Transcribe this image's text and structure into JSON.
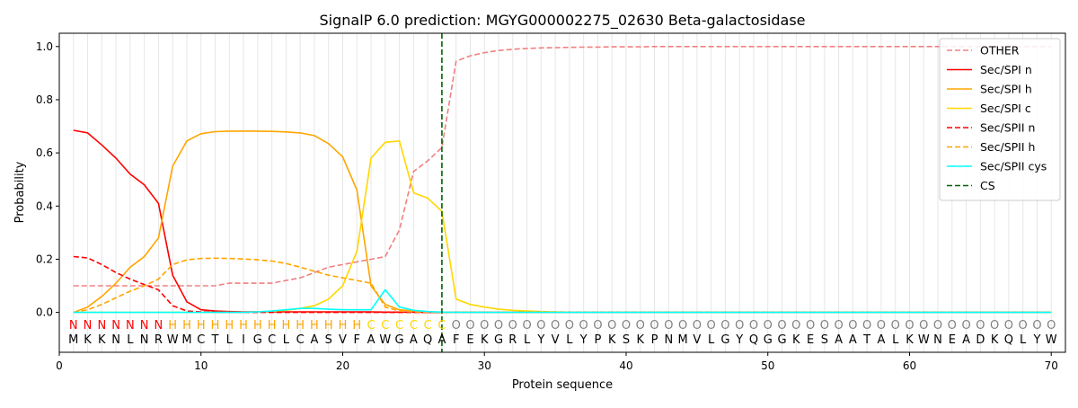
{
  "chart_data": {
    "type": "line",
    "title": "SignalP 6.0 prediction: MGYG000002275_02630 Beta-galactosidase",
    "xlabel": "Protein sequence",
    "ylabel": "Probability",
    "xlim": [
      0,
      71
    ],
    "ylim": [
      -0.15,
      1.05
    ],
    "x_ticks": [
      0,
      10,
      20,
      30,
      40,
      50,
      60,
      70
    ],
    "y_ticks": [
      0.0,
      0.2,
      0.4,
      0.6,
      0.8,
      1.0
    ],
    "grid": "vertical lines at each residue position",
    "legend_position": "top-right",
    "x": [
      1,
      2,
      3,
      4,
      5,
      6,
      7,
      8,
      9,
      10,
      11,
      12,
      13,
      14,
      15,
      16,
      17,
      18,
      19,
      20,
      21,
      22,
      23,
      24,
      25,
      26,
      27,
      28,
      29,
      30,
      31,
      32,
      33,
      34,
      35,
      36,
      37,
      38,
      39,
      40,
      41,
      42,
      43,
      44,
      45,
      46,
      47,
      48,
      49,
      50,
      51,
      52,
      53,
      54,
      55,
      56,
      57,
      58,
      59,
      60,
      61,
      62,
      63,
      64,
      65,
      66,
      67,
      68,
      69,
      70
    ],
    "sequence": [
      "M",
      "K",
      "K",
      "N",
      "L",
      "N",
      "R",
      "W",
      "M",
      "C",
      "T",
      "L",
      "I",
      "G",
      "C",
      "L",
      "C",
      "A",
      "S",
      "V",
      "F",
      "A",
      "W",
      "G",
      "A",
      "Q",
      "A",
      "F",
      "E",
      "K",
      "G",
      "R",
      "L",
      "Y",
      "V",
      "L",
      "Y",
      "P",
      "K",
      "S",
      "K",
      "P",
      "N",
      "M",
      "V",
      "L",
      "G",
      "Y",
      "Q",
      "G",
      "G",
      "K",
      "E",
      "S",
      "A",
      "A",
      "T",
      "A",
      "L",
      "K",
      "W",
      "N",
      "E",
      "A",
      "D",
      "K",
      "Q",
      "L",
      "Y",
      "W"
    ],
    "region_labels": [
      "N",
      "N",
      "N",
      "N",
      "N",
      "N",
      "N",
      "H",
      "H",
      "H",
      "H",
      "H",
      "H",
      "H",
      "H",
      "H",
      "H",
      "H",
      "H",
      "H",
      "H",
      "C",
      "C",
      "C",
      "C",
      "C",
      "C",
      "O",
      "O",
      "O",
      "O",
      "O",
      "O",
      "O",
      "O",
      "O",
      "O",
      "O",
      "O",
      "O",
      "O",
      "O",
      "O",
      "O",
      "O",
      "O",
      "O",
      "O",
      "O",
      "O",
      "O",
      "O",
      "O",
      "O",
      "O",
      "O",
      "O",
      "O",
      "O",
      "O",
      "O",
      "O",
      "O",
      "O",
      "O",
      "O",
      "O",
      "O",
      "O",
      "O"
    ],
    "region_colors": {
      "N": "#ff0000",
      "H": "#ffa500",
      "C": "#ffd700",
      "O": "#808080"
    },
    "cleavage_site": 27,
    "series": [
      {
        "name": "OTHER",
        "color": "#f08080",
        "dash": "dashed",
        "values": [
          0.1,
          0.1,
          0.1,
          0.1,
          0.1,
          0.1,
          0.1,
          0.1,
          0.1,
          0.1,
          0.1,
          0.11,
          0.11,
          0.11,
          0.11,
          0.12,
          0.13,
          0.15,
          0.17,
          0.18,
          0.19,
          0.2,
          0.21,
          0.31,
          0.53,
          0.57,
          0.62,
          0.945,
          0.965,
          0.977,
          0.985,
          0.99,
          0.993,
          0.995,
          0.996,
          0.997,
          0.998,
          0.998,
          0.999,
          0.999,
          0.999,
          1.0,
          1.0,
          1.0,
          1.0,
          1.0,
          1.0,
          1.0,
          1.0,
          1.0,
          1.0,
          1.0,
          1.0,
          1.0,
          1.0,
          1.0,
          1.0,
          1.0,
          1.0,
          1.0,
          1.0,
          1.0,
          1.0,
          1.0,
          1.0,
          1.0,
          1.0,
          1.0,
          1.0,
          1.0
        ]
      },
      {
        "name": "Sec/SPI n",
        "color": "#ff0000",
        "dash": "solid",
        "values": [
          0.685,
          0.675,
          0.63,
          0.58,
          0.52,
          0.48,
          0.41,
          0.14,
          0.04,
          0.01,
          0.005,
          0.003,
          0.002,
          0.002,
          0.002,
          0.002,
          0.002,
          0.002,
          0.002,
          0.002,
          0.002,
          0.002,
          0.001,
          0.001,
          0.001,
          0.0,
          0.0,
          0.0,
          0.0,
          0.0,
          0.0,
          0.0,
          0.0,
          0.0,
          0.0,
          0.0,
          0.0,
          0.0,
          0.0,
          0.0,
          0.0,
          0.0,
          0.0,
          0.0,
          0.0,
          0.0,
          0.0,
          0.0,
          0.0,
          0.0,
          0.0,
          0.0,
          0.0,
          0.0,
          0.0,
          0.0,
          0.0,
          0.0,
          0.0,
          0.0,
          0.0,
          0.0,
          0.0,
          0.0,
          0.0,
          0.0,
          0.0,
          0.0,
          0.0,
          0.0
        ]
      },
      {
        "name": "Sec/SPI h",
        "color": "#ffa500",
        "dash": "solid",
        "values": [
          0.0,
          0.02,
          0.06,
          0.11,
          0.17,
          0.21,
          0.28,
          0.55,
          0.645,
          0.672,
          0.68,
          0.682,
          0.682,
          0.682,
          0.681,
          0.679,
          0.675,
          0.665,
          0.635,
          0.585,
          0.46,
          0.1,
          0.03,
          0.01,
          0.005,
          0.002,
          0.001,
          0.0,
          0.0,
          0.0,
          0.0,
          0.0,
          0.0,
          0.0,
          0.0,
          0.0,
          0.0,
          0.0,
          0.0,
          0.0,
          0.0,
          0.0,
          0.0,
          0.0,
          0.0,
          0.0,
          0.0,
          0.0,
          0.0,
          0.0,
          0.0,
          0.0,
          0.0,
          0.0,
          0.0,
          0.0,
          0.0,
          0.0,
          0.0,
          0.0,
          0.0,
          0.0,
          0.0,
          0.0,
          0.0,
          0.0,
          0.0,
          0.0,
          0.0,
          0.0
        ]
      },
      {
        "name": "Sec/SPI c",
        "color": "#ffd700",
        "dash": "solid",
        "values": [
          0.0,
          0.0,
          0.0,
          0.0,
          0.0,
          0.0,
          0.0,
          0.0,
          0.0,
          0.0,
          0.0,
          0.0,
          0.0,
          0.002,
          0.004,
          0.008,
          0.015,
          0.025,
          0.05,
          0.1,
          0.23,
          0.58,
          0.64,
          0.645,
          0.45,
          0.43,
          0.38,
          0.05,
          0.03,
          0.02,
          0.012,
          0.008,
          0.005,
          0.003,
          0.002,
          0.001,
          0.0,
          0.0,
          0.0,
          0.0,
          0.0,
          0.0,
          0.0,
          0.0,
          0.0,
          0.0,
          0.0,
          0.0,
          0.0,
          0.0,
          0.0,
          0.0,
          0.0,
          0.0,
          0.0,
          0.0,
          0.0,
          0.0,
          0.0,
          0.0,
          0.0,
          0.0,
          0.0,
          0.0,
          0.0,
          0.0,
          0.0,
          0.0,
          0.0,
          0.0
        ]
      },
      {
        "name": "Sec/SPII n",
        "color": "#ff0000",
        "dash": "dashed",
        "values": [
          0.21,
          0.205,
          0.18,
          0.15,
          0.125,
          0.105,
          0.085,
          0.025,
          0.005,
          0.002,
          0.001,
          0.0,
          0.0,
          0.0,
          0.0,
          0.0,
          0.0,
          0.0,
          0.0,
          0.0,
          0.0,
          0.0,
          0.0,
          0.0,
          0.0,
          0.0,
          0.0,
          0.0,
          0.0,
          0.0,
          0.0,
          0.0,
          0.0,
          0.0,
          0.0,
          0.0,
          0.0,
          0.0,
          0.0,
          0.0,
          0.0,
          0.0,
          0.0,
          0.0,
          0.0,
          0.0,
          0.0,
          0.0,
          0.0,
          0.0,
          0.0,
          0.0,
          0.0,
          0.0,
          0.0,
          0.0,
          0.0,
          0.0,
          0.0,
          0.0,
          0.0,
          0.0,
          0.0,
          0.0,
          0.0,
          0.0,
          0.0,
          0.0,
          0.0,
          0.0
        ]
      },
      {
        "name": "Sec/SPII h",
        "color": "#ffa500",
        "dash": "dashed",
        "values": [
          0.0,
          0.01,
          0.03,
          0.055,
          0.08,
          0.1,
          0.125,
          0.18,
          0.198,
          0.203,
          0.204,
          0.203,
          0.201,
          0.198,
          0.193,
          0.184,
          0.17,
          0.155,
          0.14,
          0.13,
          0.12,
          0.11,
          0.02,
          0.005,
          0.002,
          0.001,
          0.0,
          0.0,
          0.0,
          0.0,
          0.0,
          0.0,
          0.0,
          0.0,
          0.0,
          0.0,
          0.0,
          0.0,
          0.0,
          0.0,
          0.0,
          0.0,
          0.0,
          0.0,
          0.0,
          0.0,
          0.0,
          0.0,
          0.0,
          0.0,
          0.0,
          0.0,
          0.0,
          0.0,
          0.0,
          0.0,
          0.0,
          0.0,
          0.0,
          0.0,
          0.0,
          0.0,
          0.0,
          0.0,
          0.0,
          0.0,
          0.0,
          0.0,
          0.0,
          0.0
        ]
      },
      {
        "name": "Sec/SPII cys",
        "color": "#00ffff",
        "dash": "solid",
        "values": [
          0.0,
          0.0,
          0.0,
          0.0,
          0.0,
          0.0,
          0.0,
          0.0,
          0.0,
          0.0,
          0.0,
          0.0,
          0.0,
          0.002,
          0.005,
          0.01,
          0.015,
          0.015,
          0.012,
          0.01,
          0.01,
          0.01,
          0.085,
          0.02,
          0.008,
          0.003,
          0.001,
          0.0,
          0.0,
          0.0,
          0.0,
          0.0,
          0.0,
          0.0,
          0.0,
          0.0,
          0.0,
          0.0,
          0.0,
          0.0,
          0.0,
          0.0,
          0.0,
          0.0,
          0.0,
          0.0,
          0.0,
          0.0,
          0.0,
          0.0,
          0.0,
          0.0,
          0.0,
          0.0,
          0.0,
          0.0,
          0.0,
          0.0,
          0.0,
          0.0,
          0.0,
          0.0,
          0.0,
          0.0,
          0.0,
          0.0,
          0.0,
          0.0,
          0.0,
          0.0
        ]
      }
    ],
    "cs_series": {
      "name": "CS",
      "color": "#006400",
      "dash": "dashed"
    }
  }
}
